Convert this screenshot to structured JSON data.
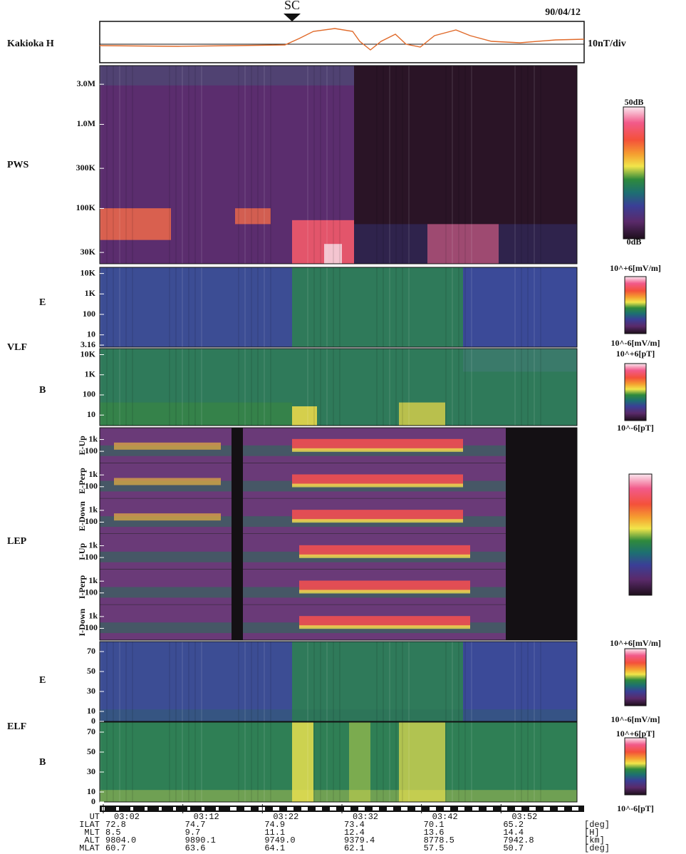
{
  "chart_data": [
    {
      "type": "trace",
      "title": "Kakioka H",
      "scale": "10nT/div",
      "event": "SC",
      "date": "90/04/12"
    },
    {
      "type": "spectrogram",
      "title": "PWS",
      "log": true,
      "ylim": [
        22000,
        5000000
      ],
      "yticks": [
        {
          "value": 3000000,
          "label": "3.0M"
        },
        {
          "value": 1000000,
          "label": "1.0M"
        },
        {
          "value": 300000,
          "label": "300K"
        },
        {
          "value": 100000,
          "label": "100K"
        },
        {
          "value": 30000,
          "label": "30K"
        }
      ],
      "colorbar": {
        "top": "50dB",
        "bottom": "0dB"
      }
    },
    {
      "type": "spectrogram",
      "title": "E",
      "group": "VLF",
      "log": true,
      "ylim": [
        2.5,
        20000
      ],
      "yticks": [
        {
          "value": 10000,
          "label": "10K"
        },
        {
          "value": 1000,
          "label": "1K"
        },
        100,
        10,
        3.16
      ],
      "colorbar": {
        "top": "10^+6[mV/m]",
        "bottom": "10^-6[mV/m]"
      }
    },
    {
      "type": "spectrogram",
      "title": "B",
      "log": true,
      "ylim": [
        3,
        20000
      ],
      "yticks": [
        {
          "value": 10000,
          "label": "10K"
        },
        {
          "value": 1000,
          "label": "1K"
        },
        100,
        10
      ],
      "colorbar": {
        "top": "10^+6[pT]",
        "bottom": "10^-6[pT]"
      }
    },
    {
      "type": "particles",
      "title": "LEP",
      "log": true,
      "ylim": [
        10,
        10000
      ],
      "subpanels": [
        "E-Up",
        "E-Perp",
        "E-Down",
        "I-Up",
        "I-Perp",
        "I-Down"
      ],
      "yticks": [
        {
          "value": 1000,
          "label": "1k"
        },
        100
      ]
    },
    {
      "type": "spectrogram",
      "title": "E",
      "group": "ELF",
      "ylim": [
        0,
        80
      ],
      "yticks": [
        70,
        50,
        30,
        10,
        0
      ],
      "colorbar": {
        "top": "10^+6[mV/m]",
        "bottom": "10^-6[mV/m]"
      }
    },
    {
      "type": "spectrogram",
      "title": "B",
      "ylim": [
        0,
        80
      ],
      "yticks": [
        70,
        50,
        30,
        10,
        0
      ],
      "colorbar": {
        "top": "10^+6[pT]",
        "bottom": "10^-6[pT]"
      }
    }
  ],
  "time_axis": {
    "x": [
      "03:02",
      "03:12",
      "03:22",
      "03:32",
      "03:42",
      "03:52"
    ],
    "rows": [
      {
        "name": "UT",
        "values": [
          "03:02",
          "03:12",
          "03:22",
          "03:32",
          "03:42",
          "03:52"
        ]
      },
      {
        "name": "ILAT",
        "values": [
          72.8,
          74.7,
          74.9,
          73.4,
          70.1,
          65.2
        ],
        "unit": "[deg]"
      },
      {
        "name": "MLT",
        "values": [
          8.5,
          9.7,
          11.1,
          12.4,
          13.6,
          14.4
        ],
        "unit": "[H]"
      },
      {
        "name": "ALT",
        "values": [
          9804.0,
          9890.1,
          9749.0,
          9379.4,
          8778.5,
          7942.8
        ],
        "unit": "[km]",
        "value_labels": [
          "9804.0",
          "9890.1",
          "9749.0",
          "9379.4",
          "8778.5",
          "7942.8"
        ]
      },
      {
        "name": "MLAT",
        "values": [
          60.7,
          63.6,
          64.1,
          62.1,
          57.5,
          50.7
        ],
        "unit": "[deg]"
      }
    ]
  }
}
